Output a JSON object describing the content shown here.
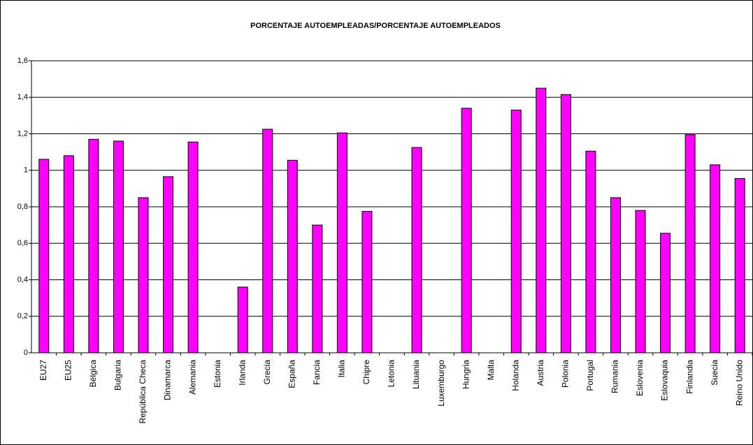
{
  "chart_data": {
    "type": "bar",
    "title": "PORCENTAJE AUTOEMPLEADAS/PORCENTAJE AUTOEMPLEADOS",
    "categories": [
      "EU27",
      "EU25",
      "Bélgica",
      "Bulgaria",
      "República Checa",
      "Dinamarca",
      "Alemania",
      "Estonia",
      "Irlanda",
      "Grecia",
      "España",
      "Fancia",
      "Italia",
      "Chipre",
      "Letonia",
      "Lituania",
      "Luxemburgo",
      "Hungria",
      "Malta",
      "Holanda",
      "Austria",
      "Polonia",
      "Portugal",
      "Rumania",
      "Eslovenia",
      "Eslovaquia",
      "Finlandia",
      "Suecia",
      "Reino Unido"
    ],
    "values": [
      1.06,
      1.08,
      1.17,
      1.16,
      0.85,
      0.965,
      1.155,
      null,
      0.36,
      1.225,
      1.055,
      0.7,
      1.205,
      0.775,
      null,
      1.125,
      null,
      1.34,
      null,
      1.33,
      1.45,
      1.415,
      1.105,
      0.85,
      0.78,
      0.655,
      1.195,
      1.03,
      0.955
    ],
    "color": "#ff00ff",
    "ylim": [
      0,
      1.6
    ],
    "yticks": [
      0,
      {
        "value": 0.2,
        "label": "0,2"
      },
      {
        "value": 0.4,
        "label": "0,4"
      },
      {
        "value": 0.6,
        "label": "0,6"
      },
      {
        "value": 0.8,
        "label": "0,8"
      },
      1,
      {
        "value": 1.2,
        "label": "1,2"
      },
      {
        "value": 1.4,
        "label": "1,4"
      },
      {
        "value": 1.6,
        "label": "1,6"
      }
    ],
    "grid": true
  }
}
